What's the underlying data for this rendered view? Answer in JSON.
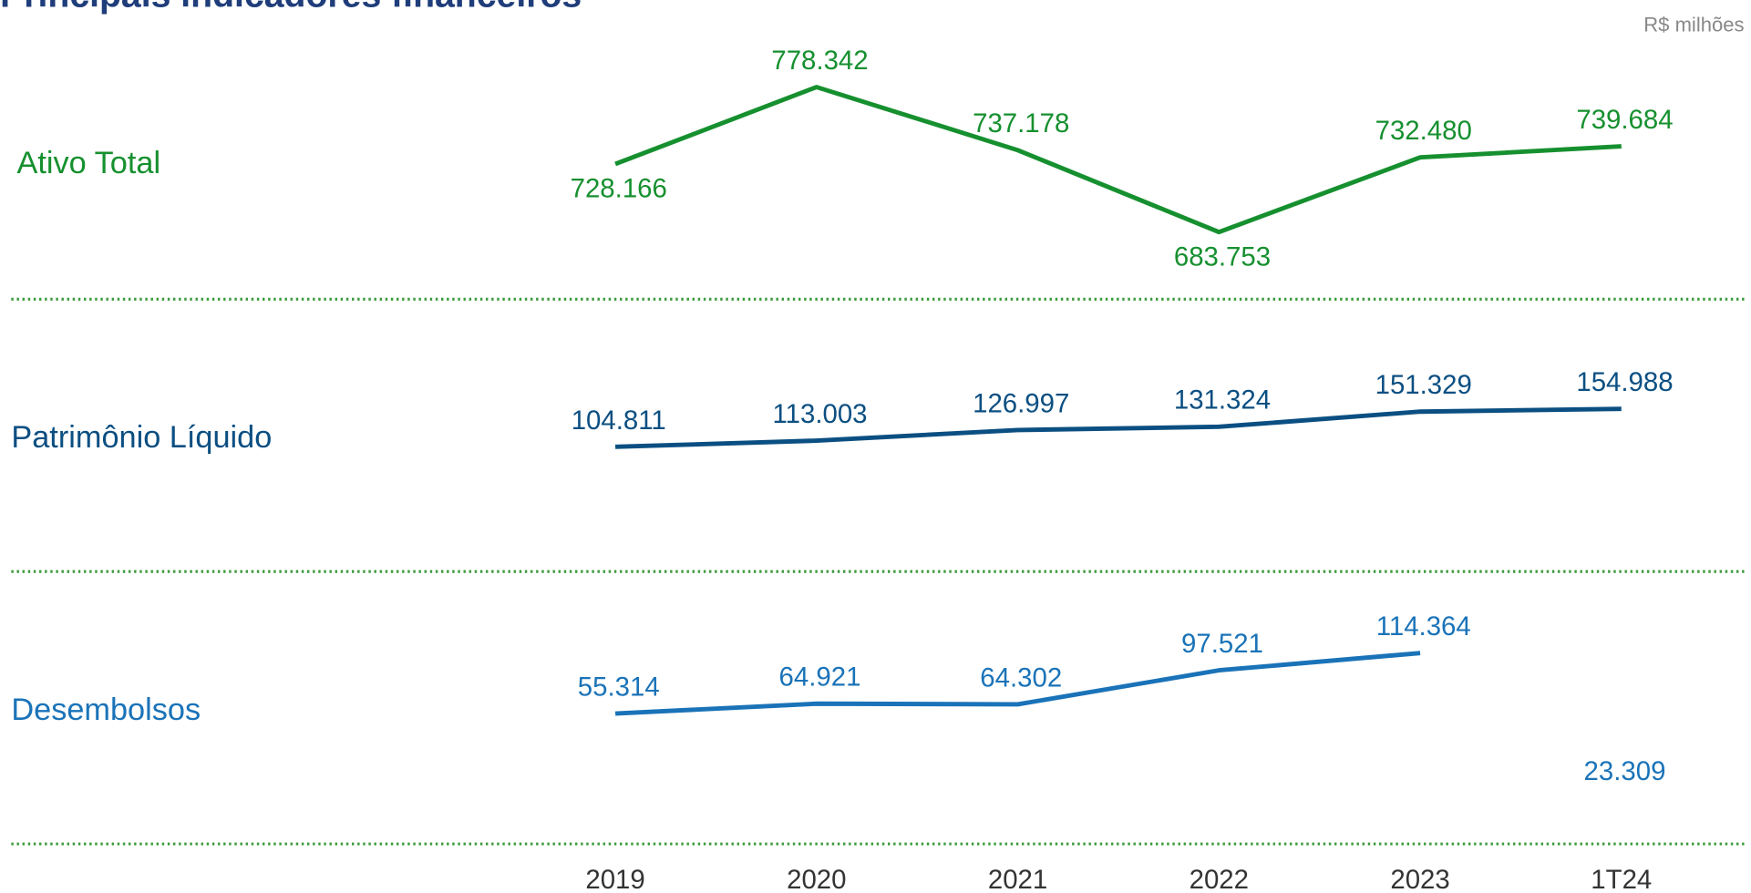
{
  "chart_data": {
    "type": "line",
    "title": "Principais indicadores financeiros",
    "subtitle": "R$ milhões",
    "categories": [
      "2019",
      "2020",
      "2021",
      "2022",
      "2023",
      "1T24"
    ],
    "series": [
      {
        "name": "Ativo Total",
        "color": "#16902f",
        "ylim": [
          640000,
          806000
        ],
        "values": [
          728166,
          778342,
          737178,
          683753,
          732480,
          739684
        ],
        "value_labels": [
          "728.166",
          "778.342",
          "737.178",
          "683.753",
          "732.480",
          "739.684"
        ]
      },
      {
        "name": "Patrimônio Líquido",
        "color": "#0b4f82",
        "ylim": [
          -60000,
          300000
        ],
        "values": [
          104811,
          113003,
          126997,
          131324,
          151329,
          154988
        ],
        "value_labels": [
          "104.811",
          "113.003",
          "126.997",
          "131.324",
          "151.329",
          "154.988"
        ]
      },
      {
        "name": "Desembolsos",
        "color": "#1a73b8",
        "ylim": [
          -72000,
          194000
        ],
        "break_before": "1T24",
        "values": [
          55314,
          64921,
          64302,
          97521,
          114364,
          23309
        ],
        "value_labels": [
          "55.314",
          "64.921",
          "64.302",
          "97.521",
          "114.364",
          "23.309"
        ]
      }
    ]
  }
}
